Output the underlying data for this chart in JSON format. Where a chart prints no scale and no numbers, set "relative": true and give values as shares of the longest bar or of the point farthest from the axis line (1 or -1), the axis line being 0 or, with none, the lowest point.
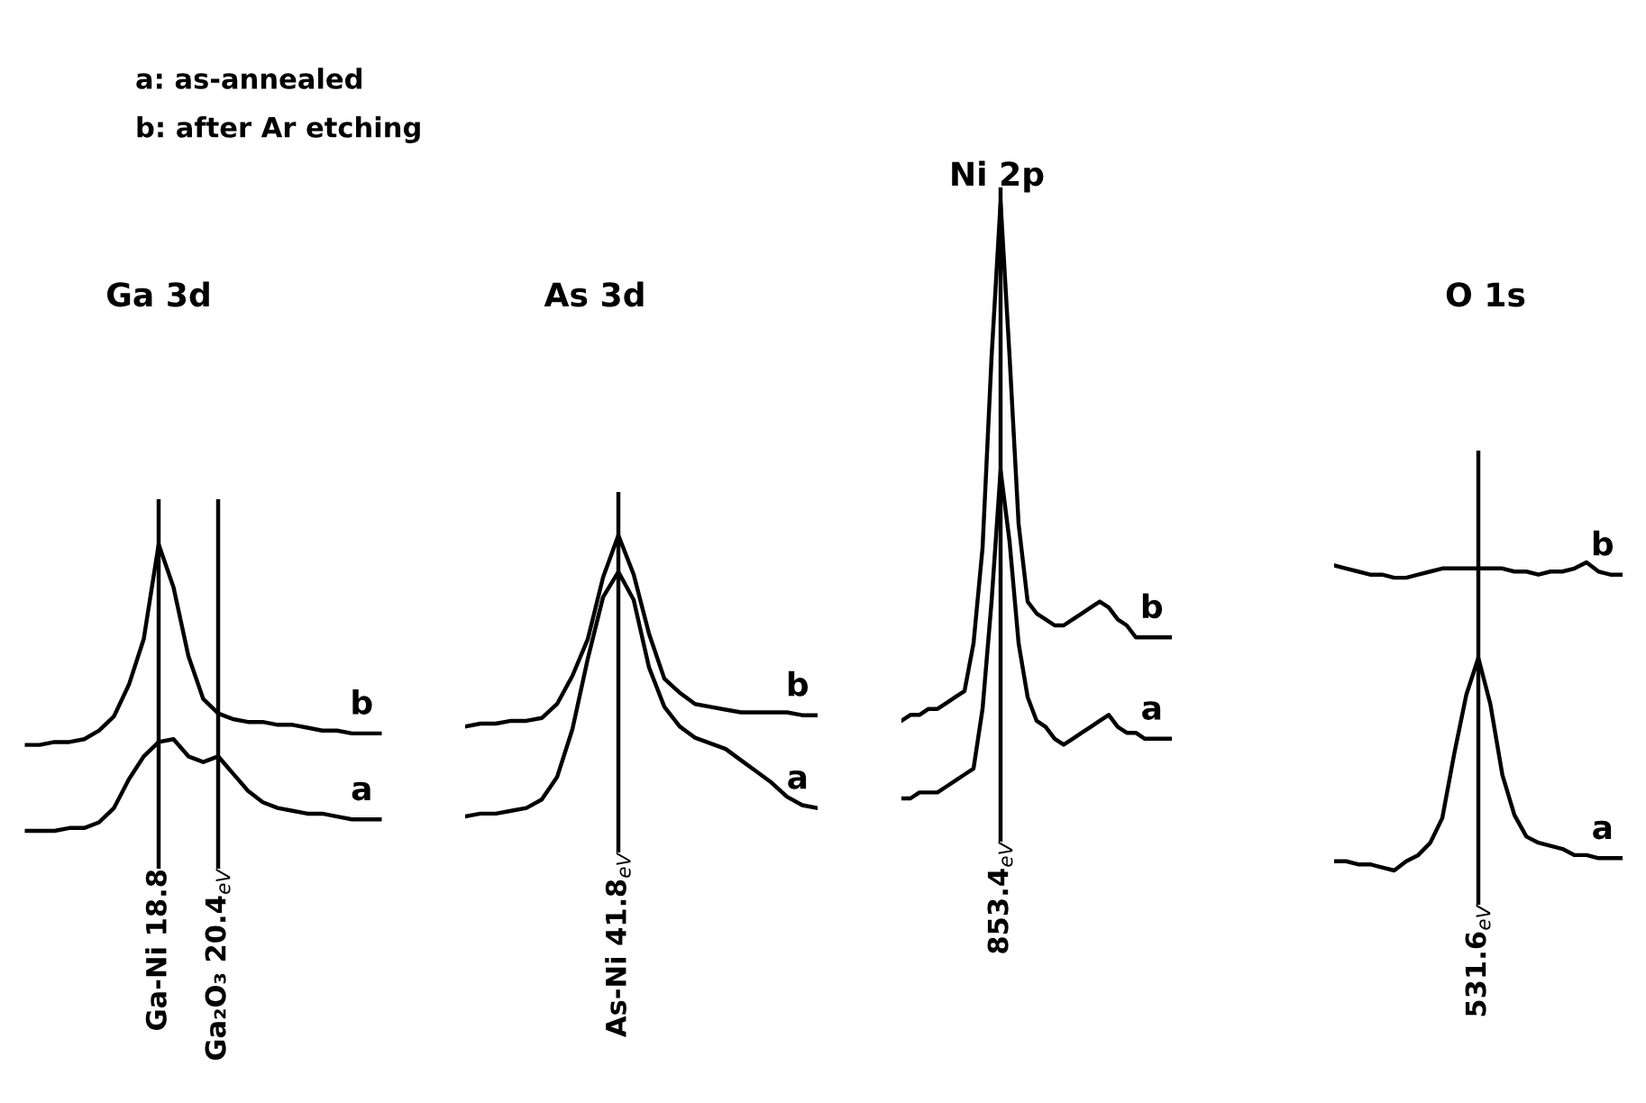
{
  "chart_data": [
    {
      "type": "line",
      "title": "Ga 3d",
      "relative": true,
      "tick_labels": false,
      "annotations": [
        "a: as-annealed",
        "b: after Ar etching",
        "Ga-Ni 18.8",
        "Ga₂O₃ 20.4$_{eV}$"
      ],
      "categories": [
        null,
        null,
        null,
        null,
        null,
        null,
        null,
        null,
        null,
        null,
        null,
        null,
        null,
        null,
        null,
        null,
        null,
        null,
        null,
        null,
        null,
        null,
        null,
        null,
        null
      ],
      "series": [
        {
          "name": "b",
          "color": "#000000",
          "values": [
            0.3,
            0.3,
            0.31,
            0.31,
            0.32,
            0.35,
            0.4,
            0.51,
            0.67,
            1.0,
            0.85,
            0.61,
            0.46,
            0.41,
            0.39,
            0.38,
            0.38,
            0.37,
            0.37,
            0.36,
            0.35,
            0.35,
            0.34,
            0.34,
            0.34
          ]
        },
        {
          "name": "a",
          "color": "#000000",
          "values": [
            0,
            0,
            0,
            0.01,
            0.01,
            0.03,
            0.08,
            0.18,
            0.26,
            0.31,
            0.32,
            0.26,
            0.24,
            0.26,
            0.2,
            0.14,
            0.1,
            0.08,
            0.07,
            0.06,
            0.06,
            0.05,
            0.04,
            0.04,
            0.04
          ]
        }
      ]
    },
    {
      "type": "line",
      "title": "As 3d",
      "relative": true,
      "tick_labels": false,
      "categories": [
        null,
        null,
        null,
        null,
        null,
        null,
        null,
        null,
        null,
        null,
        null,
        null,
        null,
        null,
        null,
        null,
        null,
        null,
        null,
        null,
        null,
        null,
        null,
        null
      ],
      "annotations": [
        "As-Ni 41.8$_{eV}$"
      ],
      "series": [
        {
          "name": "b",
          "color": "#000000",
          "values": [
            0.32,
            0.33,
            0.33,
            0.34,
            0.34,
            0.35,
            0.4,
            0.5,
            0.63,
            0.85,
            1.0,
            0.86,
            0.65,
            0.49,
            0.44,
            0.4,
            0.39,
            0.38,
            0.37,
            0.37,
            0.37,
            0.37,
            0.36,
            0.36
          ]
        },
        {
          "name": "a",
          "color": "#000000",
          "values": [
            0,
            0.01,
            0.01,
            0.02,
            0.03,
            0.06,
            0.14,
            0.31,
            0.56,
            0.78,
            0.87,
            0.77,
            0.53,
            0.39,
            0.32,
            0.28,
            0.26,
            0.24,
            0.2,
            0.16,
            0.12,
            0.07,
            0.04,
            0.03
          ]
        }
      ]
    },
    {
      "type": "line",
      "title": "Ni 2p",
      "relative": true,
      "tick_labels": false,
      "categories": [
        null,
        null,
        null,
        null,
        null,
        null,
        null,
        null,
        null,
        null,
        null,
        null,
        null,
        null,
        null,
        null,
        null,
        null,
        null,
        null,
        null,
        null,
        null,
        null,
        null,
        null,
        null,
        null,
        null,
        null,
        null
      ],
      "annotations": [
        "853.4$_{eV}$"
      ],
      "series": [
        {
          "name": "b",
          "color": "#000000",
          "values": [
            0.13,
            0.14,
            0.14,
            0.15,
            0.15,
            0.16,
            0.17,
            0.18,
            0.26,
            0.42,
            0.74,
            1.0,
            0.74,
            0.46,
            0.33,
            0.31,
            0.3,
            0.29,
            0.29,
            0.3,
            0.31,
            0.32,
            0.33,
            0.32,
            0.3,
            0.29,
            0.27,
            0.27,
            0.27,
            0.27,
            0.27
          ]
        },
        {
          "name": "a",
          "color": "#000000",
          "values": [
            0,
            0,
            0.01,
            0.01,
            0.01,
            0.02,
            0.03,
            0.04,
            0.05,
            0.15,
            0.33,
            0.55,
            0.43,
            0.26,
            0.17,
            0.13,
            0.12,
            0.1,
            0.09,
            0.1,
            0.11,
            0.12,
            0.13,
            0.14,
            0.12,
            0.11,
            0.11,
            0.1,
            0.1,
            0.1,
            0.1
          ]
        }
      ]
    },
    {
      "type": "line",
      "title": "O 1s",
      "relative": true,
      "tick_labels": false,
      "categories": [
        null,
        null,
        null,
        null,
        null,
        null,
        null,
        null,
        null,
        null,
        null,
        null,
        null,
        null,
        null,
        null,
        null,
        null,
        null,
        null,
        null,
        null,
        null,
        null,
        null
      ],
      "annotations": [
        "531.6$_{eV}$"
      ],
      "series": [
        {
          "name": "b",
          "color": "#000000",
          "values": [
            0.99,
            0.98,
            0.97,
            0.96,
            0.96,
            0.95,
            0.95,
            0.96,
            0.97,
            0.98,
            0.98,
            0.98,
            0.98,
            0.98,
            0.98,
            0.97,
            0.97,
            0.96,
            0.97,
            0.97,
            0.98,
            1.0,
            0.97,
            0.96,
            0.96
          ]
        },
        {
          "name": "a",
          "color": "#000000",
          "values": [
            0.03,
            0.03,
            0.02,
            0.02,
            0.01,
            0,
            0.03,
            0.05,
            0.09,
            0.17,
            0.38,
            0.57,
            0.69,
            0.54,
            0.31,
            0.18,
            0.11,
            0.09,
            0.08,
            0.07,
            0.05,
            0.05,
            0.04,
            0.04,
            0.04
          ]
        }
      ]
    }
  ]
}
